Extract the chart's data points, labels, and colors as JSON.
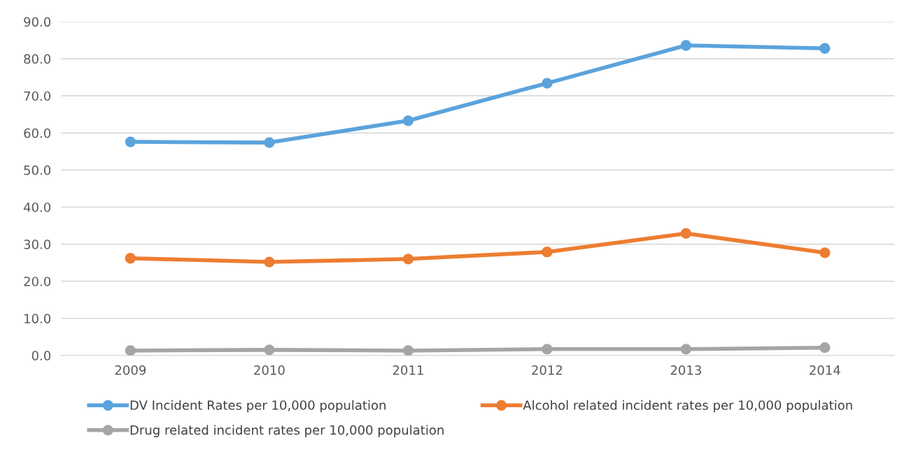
{
  "chart_data": {
    "type": "line",
    "categories": [
      "2009",
      "2010",
      "2011",
      "2012",
      "2013",
      "2014"
    ],
    "series": [
      {
        "name": "DV Incident Rates per 10,000 population",
        "color": "#5ba3dc",
        "values": [
          57.6,
          57.4,
          63.3,
          73.4,
          83.6,
          82.8
        ]
      },
      {
        "name": "Alcohol related incident rates per 10,000 population",
        "color": "#ed7d31",
        "values": [
          26.2,
          25.2,
          26.0,
          27.9,
          32.9,
          27.7
        ]
      },
      {
        "name": "Drug related incident rates per 10,000 population",
        "color": "#a5a5a5",
        "values": [
          1.3,
          1.5,
          1.3,
          1.7,
          1.7,
          2.1
        ]
      }
    ],
    "ylim": [
      0,
      90
    ],
    "yticks": [
      {
        "value": 0,
        "label": "0.0"
      },
      {
        "value": 10,
        "label": "10.0"
      },
      {
        "value": 20,
        "label": "20.0"
      },
      {
        "value": 30,
        "label": "30.0"
      },
      {
        "value": 40,
        "label": "40.0"
      },
      {
        "value": 50,
        "label": "50.0"
      },
      {
        "value": 60,
        "label": "60.0"
      },
      {
        "value": 70,
        "label": "70.0"
      },
      {
        "value": 80,
        "label": "80.0"
      },
      {
        "value": 90,
        "label": "90.0"
      }
    ],
    "grid": "y",
    "legend": "bottom",
    "marker": "circle",
    "line_style": "solid"
  }
}
